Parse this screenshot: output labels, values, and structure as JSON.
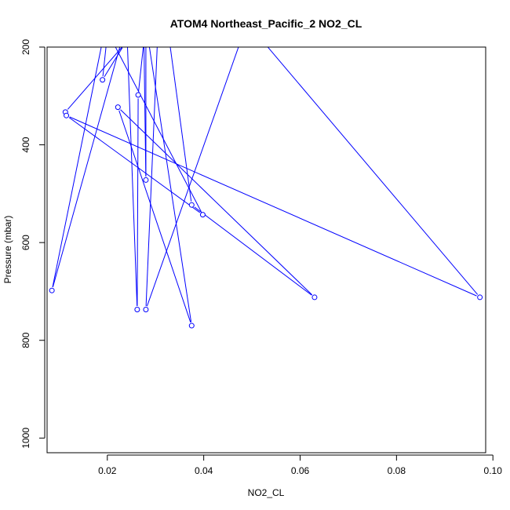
{
  "chart_data": {
    "type": "line",
    "title": "ATOM4 Northeast_Pacific_2 NO2_CL",
    "xlabel": "NO2_CL",
    "ylabel": "Pressure (mbar)",
    "xlim": [
      0.0075,
      0.0985
    ],
    "ylim": [
      1030,
      200
    ],
    "y_reversed": true,
    "x_ticks": [
      0.02,
      0.04,
      0.06,
      0.08,
      0.1
    ],
    "x_tick_labels": [
      "0.02",
      "0.04",
      "0.06",
      "0.08",
      "0.10"
    ],
    "y_ticks": [
      200,
      400,
      600,
      800,
      1000
    ],
    "y_tick_labels": [
      "200",
      "400",
      "600",
      "800",
      "1000"
    ],
    "series": [
      {
        "color": "#0000ff",
        "marker": "open-circle",
        "points": [
          {
            "x": 0.0113,
            "y": 333
          },
          {
            "x": 0.0235,
            "y": 195
          },
          {
            "x": 0.019,
            "y": 267
          },
          {
            "x": 0.0208,
            "y": 100
          },
          {
            "x": 0.0085,
            "y": 698
          },
          {
            "x": 0.024,
            "y": 150
          },
          {
            "x": 0.0262,
            "y": 737
          },
          {
            "x": 0.0264,
            "y": 298
          },
          {
            "x": 0.028,
            "y": 150
          },
          {
            "x": 0.028,
            "y": 472
          },
          {
            "x": 0.0275,
            "y": 120
          },
          {
            "x": 0.0375,
            "y": 770
          },
          {
            "x": 0.0222,
            "y": 323
          },
          {
            "x": 0.063,
            "y": 712
          },
          {
            "x": 0.0375,
            "y": 523
          },
          {
            "x": 0.031,
            "y": 50
          },
          {
            "x": 0.028,
            "y": 737
          },
          {
            "x": 0.049,
            "y": 150
          },
          {
            "x": 0.0973,
            "y": 712
          },
          {
            "x": 0.0115,
            "y": 340
          },
          {
            "x": 0.0398,
            "y": 543
          },
          {
            "x": 0.018,
            "y": 130
          }
        ]
      }
    ]
  }
}
